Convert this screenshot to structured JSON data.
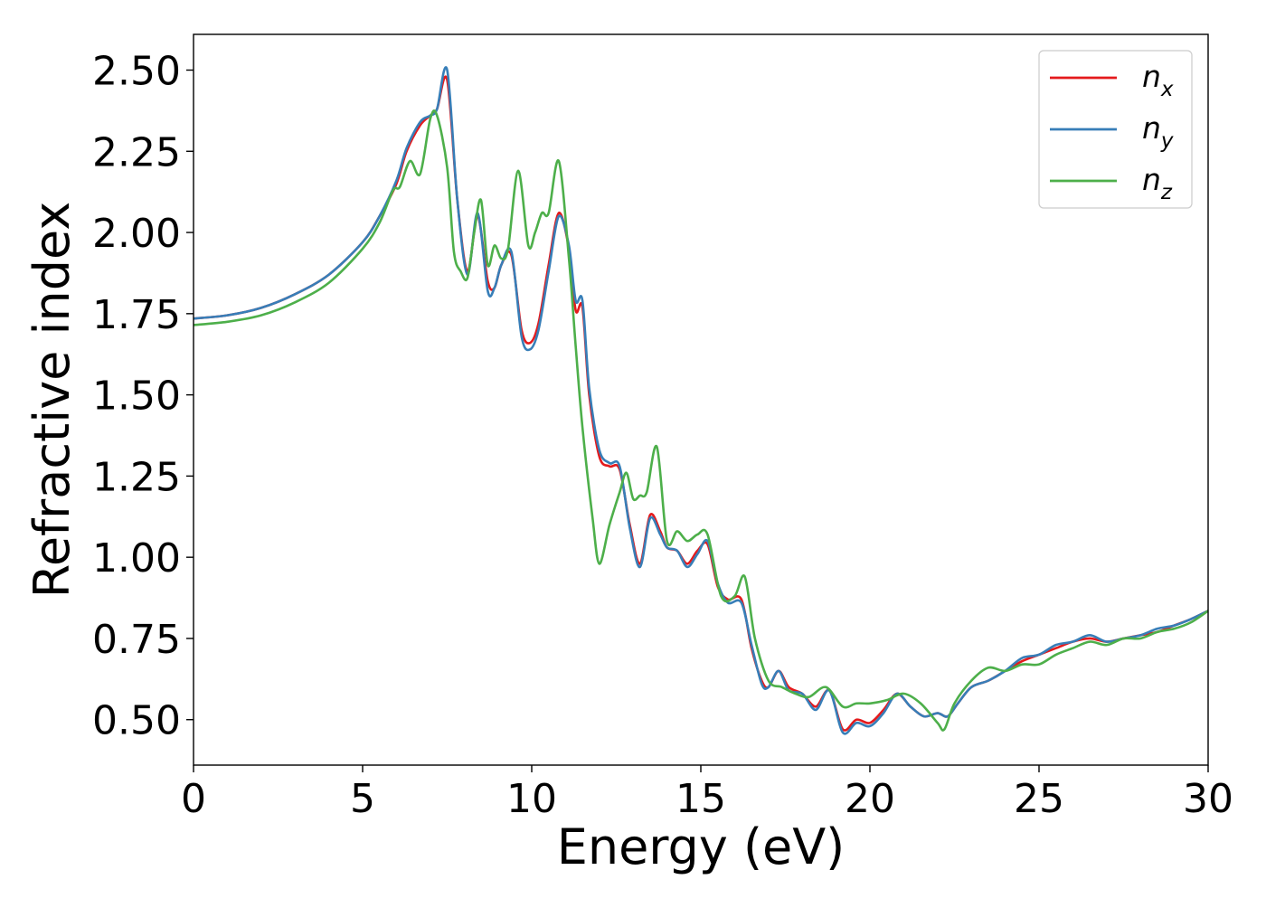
{
  "chart_data": {
    "type": "line",
    "xlabel": "Energy (eV)",
    "ylabel": "Refractive index",
    "xlim": [
      0,
      30
    ],
    "ylim": [
      0.36,
      2.61
    ],
    "xticks": [
      0,
      5,
      10,
      15,
      20,
      25,
      30
    ],
    "yticks": [
      0.5,
      0.75,
      1.0,
      1.25,
      1.5,
      1.75,
      2.0,
      2.25,
      2.5
    ],
    "xtick_labels": [
      "0",
      "5",
      "10",
      "15",
      "20",
      "25",
      "30"
    ],
    "ytick_labels": [
      "0.50",
      "0.75",
      "1.00",
      "1.25",
      "1.50",
      "1.75",
      "2.00",
      "2.25",
      "2.50"
    ],
    "grid": false,
    "legend_position": "top-right",
    "series": [
      {
        "name": "n",
        "subscript": "x",
        "color": "#e41a1c",
        "x": [
          0,
          1,
          2,
          3,
          4,
          5,
          5.5,
          6,
          6.3,
          6.7,
          7.0,
          7.2,
          7.5,
          7.8,
          8.1,
          8.4,
          8.7,
          8.9,
          9.1,
          9.4,
          9.7,
          9.95,
          10.2,
          10.5,
          10.8,
          11.1,
          11.3,
          11.5,
          11.7,
          12.0,
          12.3,
          12.6,
          12.9,
          13.2,
          13.5,
          13.8,
          14.0,
          14.3,
          14.6,
          14.9,
          15.2,
          15.5,
          15.8,
          16.2,
          16.5,
          16.8,
          17.0,
          17.3,
          17.6,
          18.0,
          18.4,
          18.8,
          19.2,
          19.6,
          20.0,
          20.4,
          20.8,
          21.2,
          21.6,
          22.0,
          22.3,
          22.6,
          23.0,
          23.5,
          24.0,
          24.5,
          25.0,
          25.5,
          26.0,
          26.5,
          27.0,
          27.5,
          28.0,
          28.5,
          29.0,
          29.5,
          30.0
        ],
        "values": [
          1.735,
          1.745,
          1.768,
          1.81,
          1.87,
          1.97,
          2.05,
          2.15,
          2.25,
          2.33,
          2.36,
          2.38,
          2.47,
          2.1,
          1.88,
          2.05,
          1.85,
          1.83,
          1.9,
          1.93,
          1.7,
          1.66,
          1.72,
          1.9,
          2.06,
          1.95,
          1.76,
          1.77,
          1.5,
          1.31,
          1.28,
          1.27,
          1.1,
          0.98,
          1.13,
          1.08,
          1.03,
          1.02,
          0.98,
          1.02,
          1.04,
          0.91,
          0.87,
          0.87,
          0.72,
          0.62,
          0.6,
          0.65,
          0.6,
          0.58,
          0.54,
          0.59,
          0.47,
          0.5,
          0.49,
          0.53,
          0.58,
          0.54,
          0.51,
          0.52,
          0.51,
          0.55,
          0.6,
          0.62,
          0.65,
          0.68,
          0.7,
          0.72,
          0.74,
          0.75,
          0.74,
          0.75,
          0.76,
          0.77,
          0.79,
          0.81,
          0.835
        ]
      },
      {
        "name": "n",
        "subscript": "y",
        "color": "#377eb8",
        "x": [
          0,
          1,
          2,
          3,
          4,
          5,
          5.5,
          6,
          6.3,
          6.7,
          7.0,
          7.2,
          7.5,
          7.8,
          8.1,
          8.4,
          8.7,
          8.9,
          9.1,
          9.4,
          9.7,
          9.95,
          10.2,
          10.5,
          10.8,
          11.1,
          11.3,
          11.5,
          11.7,
          12.0,
          12.3,
          12.6,
          12.9,
          13.2,
          13.5,
          13.8,
          14.0,
          14.3,
          14.6,
          14.9,
          15.2,
          15.5,
          15.8,
          16.2,
          16.5,
          16.8,
          17.0,
          17.3,
          17.6,
          18.0,
          18.4,
          18.8,
          19.2,
          19.6,
          20.0,
          20.4,
          20.8,
          21.2,
          21.6,
          22.0,
          22.3,
          22.6,
          23.0,
          23.5,
          24.0,
          24.5,
          25.0,
          25.5,
          26.0,
          26.5,
          27.0,
          27.5,
          28.0,
          28.5,
          29.0,
          29.5,
          30.0
        ],
        "values": [
          1.735,
          1.745,
          1.768,
          1.81,
          1.87,
          1.97,
          2.05,
          2.16,
          2.26,
          2.34,
          2.36,
          2.38,
          2.5,
          2.1,
          1.87,
          2.06,
          1.82,
          1.83,
          1.9,
          1.94,
          1.68,
          1.64,
          1.7,
          1.88,
          2.05,
          1.96,
          1.79,
          1.79,
          1.52,
          1.33,
          1.29,
          1.28,
          1.09,
          0.97,
          1.12,
          1.07,
          1.03,
          1.02,
          0.97,
          1.01,
          1.05,
          0.92,
          0.86,
          0.86,
          0.73,
          0.61,
          0.6,
          0.65,
          0.59,
          0.58,
          0.53,
          0.59,
          0.46,
          0.49,
          0.48,
          0.52,
          0.58,
          0.54,
          0.51,
          0.52,
          0.51,
          0.55,
          0.6,
          0.62,
          0.65,
          0.69,
          0.7,
          0.73,
          0.74,
          0.76,
          0.74,
          0.75,
          0.76,
          0.78,
          0.79,
          0.81,
          0.835
        ]
      },
      {
        "name": "n",
        "subscript": "z",
        "color": "#4daf4a",
        "x": [
          0,
          1,
          2,
          3,
          4,
          5,
          5.5,
          5.9,
          6.1,
          6.4,
          6.7,
          7.0,
          7.2,
          7.5,
          7.7,
          7.9,
          8.1,
          8.3,
          8.5,
          8.7,
          8.9,
          9.1,
          9.3,
          9.6,
          9.9,
          10.1,
          10.3,
          10.5,
          10.8,
          11.1,
          11.3,
          11.5,
          11.8,
          12.0,
          12.3,
          12.6,
          12.8,
          13.0,
          13.2,
          13.4,
          13.7,
          14.0,
          14.3,
          14.6,
          14.9,
          15.2,
          15.6,
          16.0,
          16.3,
          16.6,
          17.0,
          17.4,
          17.8,
          18.2,
          18.7,
          19.2,
          19.6,
          20.0,
          20.5,
          21.0,
          21.5,
          22.0,
          22.2,
          22.5,
          23.0,
          23.5,
          24.0,
          24.5,
          25.0,
          25.5,
          26.0,
          26.5,
          27.0,
          27.5,
          28.0,
          28.5,
          29.0,
          29.5,
          30.0
        ],
        "values": [
          1.715,
          1.725,
          1.745,
          1.785,
          1.845,
          1.95,
          2.03,
          2.13,
          2.14,
          2.22,
          2.18,
          2.35,
          2.36,
          2.2,
          1.94,
          1.88,
          1.86,
          2.0,
          2.1,
          1.9,
          1.96,
          1.92,
          1.95,
          2.19,
          1.96,
          2.0,
          2.06,
          2.06,
          2.22,
          1.92,
          1.65,
          1.4,
          1.12,
          0.98,
          1.1,
          1.2,
          1.26,
          1.18,
          1.19,
          1.2,
          1.34,
          1.05,
          1.08,
          1.05,
          1.07,
          1.07,
          0.88,
          0.88,
          0.94,
          0.75,
          0.62,
          0.6,
          0.58,
          0.57,
          0.6,
          0.54,
          0.55,
          0.55,
          0.56,
          0.58,
          0.55,
          0.49,
          0.47,
          0.55,
          0.62,
          0.66,
          0.65,
          0.67,
          0.67,
          0.7,
          0.72,
          0.74,
          0.73,
          0.75,
          0.75,
          0.77,
          0.78,
          0.8,
          0.835
        ]
      }
    ]
  }
}
